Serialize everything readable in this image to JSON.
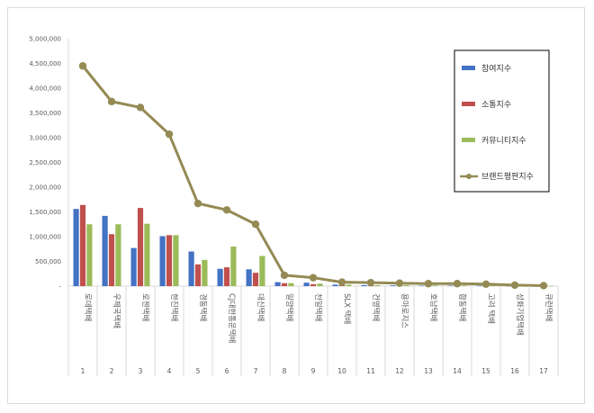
{
  "chart_data": {
    "type": "bar",
    "title": "",
    "xlabel": "",
    "ylabel": "",
    "ylim": [
      0,
      5000000
    ],
    "yticks": [
      0,
      500000,
      1000000,
      1500000,
      2000000,
      2500000,
      3000000,
      3500000,
      4000000,
      4500000,
      5000000
    ],
    "ytick_labels": [
      "-",
      "500,000",
      "1,000,000",
      "1,500,000",
      "2,000,000",
      "2,500,000",
      "3,000,000",
      "3,500,000",
      "4,000,000",
      "4,500,000",
      "5,000,000"
    ],
    "categories": [
      "로데택배",
      "우체국택배",
      "로젠택배",
      "한진택배",
      "경동택배",
      "CJ대한통운택배",
      "대신택배",
      "일양택배",
      "천일택배",
      "SLX 택배",
      "건영택배",
      "용마로지스",
      "호남택배",
      "합동택배",
      "고려 택배",
      "성화기업택배",
      "큐런택배"
    ],
    "ranks": [
      "1",
      "2",
      "3",
      "4",
      "5",
      "6",
      "7",
      "8",
      "9",
      "10",
      "11",
      "12",
      "13",
      "14",
      "15",
      "16",
      "17"
    ],
    "series": [
      {
        "name": "참여지수",
        "kind": "bar",
        "color": "#4472c4",
        "values": [
          1560000,
          1420000,
          770000,
          1010000,
          700000,
          350000,
          340000,
          80000,
          70000,
          30000,
          20000,
          15000,
          10000,
          10000,
          8000,
          5000,
          3000
        ]
      },
      {
        "name": "소통지수",
        "kind": "bar",
        "color": "#c0504d",
        "values": [
          1640000,
          1050000,
          1580000,
          1030000,
          440000,
          380000,
          270000,
          60000,
          40000,
          20000,
          15000,
          10000,
          10000,
          8000,
          5000,
          3000,
          2000
        ]
      },
      {
        "name": "커뮤니티지수",
        "kind": "bar",
        "color": "#9bbb59",
        "values": [
          1250000,
          1250000,
          1260000,
          1030000,
          530000,
          800000,
          610000,
          60000,
          50000,
          30000,
          20000,
          20000,
          15000,
          15000,
          10000,
          8000,
          5000
        ]
      },
      {
        "name": "브랜드평판지수",
        "kind": "line",
        "color": "#948a54",
        "values": [
          4450000,
          3730000,
          3610000,
          3070000,
          1670000,
          1540000,
          1250000,
          220000,
          170000,
          80000,
          70000,
          60000,
          50000,
          50000,
          40000,
          20000,
          10000
        ]
      }
    ],
    "legend_position": "right",
    "grid": false
  }
}
